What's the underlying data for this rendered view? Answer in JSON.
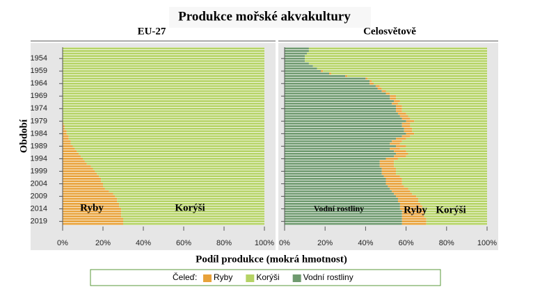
{
  "title": "Produkce mořské akvakultury",
  "xlabel": "Podíl produkce (mokrá hmotnost)",
  "ylabel": "Období",
  "legend": {
    "title": "Čeleď:",
    "items": [
      {
        "name": "Ryby",
        "color": "#e8a23a"
      },
      {
        "name": "Korýši",
        "color": "#b5d365"
      },
      {
        "name": "Vodní rostliny",
        "color": "#6f9a6f"
      }
    ]
  },
  "chart_data": [
    {
      "type": "stacked-barh",
      "subtitle": "EU-27",
      "categories": [
        null,
        null,
        null,
        null,
        "1954",
        null,
        null,
        null,
        null,
        "1959",
        null,
        null,
        null,
        null,
        "1964",
        null,
        null,
        null,
        null,
        "1969",
        null,
        null,
        null,
        null,
        "1974",
        null,
        null,
        null,
        null,
        "1979",
        null,
        null,
        null,
        null,
        "1984",
        null,
        null,
        null,
        null,
        "1989",
        null,
        null,
        null,
        null,
        "1994",
        null,
        null,
        null,
        null,
        "1999",
        null,
        null,
        null,
        null,
        "2004",
        null,
        null,
        null,
        null,
        "2009",
        null,
        null,
        null,
        null,
        "2014",
        null,
        null,
        null,
        null,
        "2019",
        null
      ],
      "series": [
        {
          "name": "Ryby",
          "color": "#e8a23a",
          "values": [
            0,
            0,
            0,
            0,
            0,
            0,
            0,
            0,
            0,
            0,
            0,
            0,
            0,
            0,
            0,
            0,
            0,
            0,
            0,
            0,
            0,
            0,
            0,
            0,
            0,
            0,
            0,
            0,
            0,
            0,
            0.5,
            1,
            1,
            2,
            2,
            3,
            3,
            4,
            4,
            5,
            6,
            7,
            8,
            9,
            10,
            11,
            12,
            14,
            15,
            16,
            17,
            18,
            19,
            19,
            20,
            20,
            21,
            23,
            25,
            26,
            27,
            27,
            28,
            28,
            29,
            29,
            29,
            29,
            30,
            30,
            30
          ]
        },
        {
          "name": "Korýši",
          "color": "#b5d365",
          "values": [
            100,
            100,
            100,
            100,
            100,
            100,
            100,
            100,
            100,
            100,
            100,
            100,
            100,
            100,
            100,
            100,
            100,
            100,
            100,
            100,
            100,
            100,
            100,
            100,
            100,
            100,
            100,
            100,
            100,
            100,
            99.5,
            99,
            99,
            98,
            98,
            97,
            97,
            96,
            96,
            95,
            94,
            93,
            92,
            91,
            90,
            89,
            88,
            86,
            85,
            84,
            83,
            82,
            81,
            81,
            80,
            80,
            79,
            77,
            75,
            74,
            73,
            73,
            72,
            72,
            71,
            71,
            71,
            71,
            70,
            70,
            70
          ]
        }
      ],
      "xlim": [
        0,
        100
      ],
      "xticks": [
        {
          "value": 0,
          "label": "0%"
        },
        {
          "value": 20,
          "label": "20%"
        },
        {
          "value": 40,
          "label": "40%"
        },
        {
          "value": 60,
          "label": "60%"
        },
        {
          "value": 80,
          "label": "80%"
        },
        {
          "value": 100,
          "label": "100%"
        }
      ]
    },
    {
      "type": "stacked-barh",
      "subtitle": "Celosvětově",
      "series": [
        {
          "name": "Vodní rostliny",
          "color": "#6f9a6f",
          "values": [
            12,
            12,
            11,
            10,
            10,
            10,
            12,
            14,
            16,
            18,
            22,
            30,
            40,
            42,
            42,
            45,
            46,
            48,
            50,
            52,
            52,
            54,
            53,
            55,
            55,
            55,
            56,
            57,
            58,
            60,
            58,
            58,
            59,
            59,
            60,
            58,
            55,
            53,
            52,
            55,
            52,
            54,
            55,
            54,
            50,
            47,
            47,
            47,
            48,
            48,
            48,
            49,
            50,
            50,
            50,
            51,
            52,
            53,
            54,
            55,
            56,
            56,
            57,
            57,
            57,
            58,
            58,
            58,
            58,
            58,
            58
          ]
        },
        {
          "name": "Ryby",
          "color": "#e8a23a",
          "values": [
            0,
            0,
            0,
            0,
            0,
            0,
            0,
            0,
            0,
            1,
            1,
            1,
            1,
            1,
            2,
            2,
            2,
            2,
            2,
            3,
            3,
            3,
            3,
            3,
            3,
            3,
            4,
            4,
            4,
            4,
            4,
            4,
            4,
            4,
            4,
            4,
            5,
            5,
            5,
            5,
            5,
            6,
            6,
            6,
            6,
            7,
            7,
            7,
            7,
            7,
            7,
            8,
            8,
            8,
            8,
            8,
            9,
            9,
            9,
            10,
            10,
            10,
            10,
            11,
            11,
            11,
            11,
            11,
            12,
            12,
            12
          ]
        },
        {
          "name": "Korýši",
          "color": "#b5d365",
          "values": [
            88,
            88,
            89,
            90,
            90,
            90,
            88,
            86,
            84,
            81,
            77,
            69,
            59,
            57,
            56,
            53,
            52,
            50,
            48,
            45,
            45,
            43,
            44,
            42,
            42,
            42,
            40,
            39,
            38,
            36,
            38,
            38,
            37,
            37,
            36,
            38,
            40,
            42,
            43,
            40,
            43,
            40,
            39,
            40,
            44,
            46,
            46,
            46,
            45,
            45,
            45,
            43,
            42,
            42,
            42,
            41,
            39,
            38,
            37,
            35,
            34,
            34,
            33,
            32,
            32,
            31,
            31,
            31,
            30,
            30,
            30
          ]
        }
      ],
      "xlim": [
        0,
        100
      ],
      "xticks": [
        {
          "value": 0,
          "label": "0%"
        },
        {
          "value": 20,
          "label": "20%"
        },
        {
          "value": 40,
          "label": "40%"
        },
        {
          "value": 60,
          "label": "60%"
        },
        {
          "value": 80,
          "label": "80%"
        },
        {
          "value": 100,
          "label": "100%"
        }
      ]
    }
  ]
}
